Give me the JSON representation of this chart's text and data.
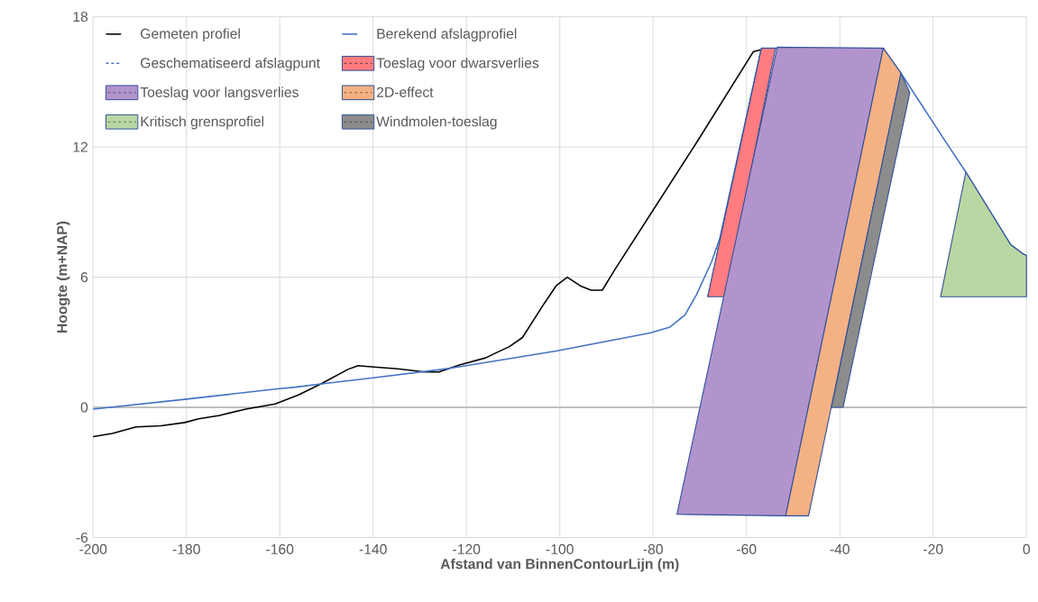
{
  "chart_data": {
    "type": "line",
    "xlabel": "Afstand van BinnenContourLijn (m)",
    "ylabel": "Hoogte (m+NAP)",
    "xlim": [
      -200,
      0
    ],
    "xticks": [
      -200,
      -180,
      -160,
      -140,
      -120,
      -100,
      -80,
      -60,
      -40,
      -20,
      0
    ],
    "ylim": [
      -6,
      18
    ],
    "yticks": [
      -6,
      0,
      6,
      12,
      18
    ],
    "grid": true,
    "legend": "top left",
    "series": [
      {
        "name": "Gemeten profiel",
        "color": "#000000",
        "x": [
          -200,
          -195.9,
          -190.8,
          -185.5,
          -180.4,
          -177.4,
          -172.9,
          -167.3,
          -161,
          -156,
          -151,
          -145.4,
          -143.2,
          -140.4,
          -134.7,
          -129,
          -125.9,
          -121.5,
          -115.9,
          -113.5,
          -110.8,
          -108,
          -103.3,
          -100.8,
          -98.4,
          -95.6,
          -93.3,
          -90.9,
          -88.2,
          -70.7,
          -58.5,
          -56.5
        ],
        "values": [
          -1.35,
          -1.2,
          -0.9,
          -0.85,
          -0.7,
          -0.53,
          -0.37,
          -0.08,
          0.16,
          0.57,
          1.1,
          1.75,
          1.92,
          1.87,
          1.78,
          1.63,
          1.63,
          1.95,
          2.28,
          2.53,
          2.8,
          3.22,
          4.8,
          5.6,
          6.0,
          5.6,
          5.4,
          5.4,
          6.35,
          12.2,
          16.4,
          16.5
        ]
      },
      {
        "name": "Berekend afslagprofiel",
        "color": "#4472c4",
        "x": [
          -200,
          -180.4,
          -160.5,
          -156.7,
          -150.3,
          -140.4,
          -125.3,
          -121.5,
          -100.8,
          -80.7,
          -76.4,
          -73.2,
          -70.7,
          -67.5,
          -65.7,
          -56.8,
          -30.7,
          -26.9,
          -17.5,
          -13,
          -3.4,
          -0.6,
          0
        ],
        "values": [
          -0.08,
          0.37,
          0.85,
          0.93,
          1.1,
          1.35,
          1.75,
          1.87,
          2.6,
          3.43,
          3.7,
          4.25,
          5.2,
          6.7,
          7.8,
          16.55,
          16.55,
          15.4,
          12.3,
          10.84,
          7.5,
          7.05,
          7.0
        ]
      },
      {
        "name": "Geschematiseerd afslagpunt",
        "color": "#4472c4",
        "line_style": "dashed",
        "x": [
          -68.3,
          -56.8
        ],
        "values": [
          5.1,
          16.55
        ]
      },
      {
        "name": "Toeslag voor dwarsverlies",
        "type": "area",
        "color": "#ff7c80",
        "x": [
          -68.3,
          -56.8,
          -53.8,
          -64.5
        ],
        "values": [
          5.1,
          16.55,
          16.55,
          5.1
        ]
      },
      {
        "name": "Toeslag voor langsverlies",
        "type": "area",
        "color": "#b294cc",
        "x": [
          -74.9,
          -53.4,
          -30.7,
          -51.6
        ],
        "values": [
          -4.93,
          16.6,
          16.55,
          -5.0
        ]
      },
      {
        "name": "2D-effect",
        "type": "area",
        "color": "#f4b183",
        "x": [
          -51.6,
          -30.7,
          -26.9,
          -46.7
        ],
        "values": [
          -5.0,
          16.55,
          15.4,
          -5.0
        ]
      },
      {
        "name": "Kritisch grensprofiel",
        "type": "area",
        "color": "#b9d7a2",
        "x": [
          -18.4,
          -13,
          -3.4,
          -0.6,
          0,
          0
        ],
        "values": [
          5.1,
          10.84,
          7.5,
          7.05,
          7.0,
          5.1
        ]
      },
      {
        "name": "Windmolen-toeslag",
        "type": "area",
        "color": "#8c8c8c",
        "x": [
          -41.8,
          -26.9,
          -25.0,
          -39.3
        ],
        "values": [
          0,
          15.4,
          14.5,
          0
        ]
      }
    ]
  }
}
